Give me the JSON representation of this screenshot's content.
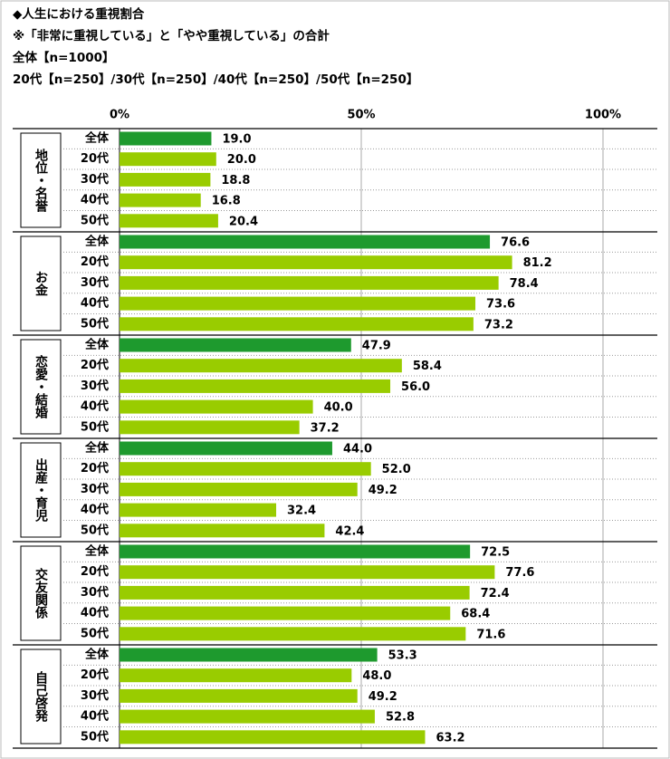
{
  "chart_data": {
    "type": "bar",
    "orientation": "horizontal",
    "title": "◆人生における重視割合",
    "subtitles": [
      "※「非常に重視している」と「やや重視している」の合計",
      "全体【n=1000】",
      "20代【n=250】/30代【n=250】/40代【n=250】/50代【n=250】"
    ],
    "categories": [
      "全体",
      "20代",
      "30代",
      "40代",
      "50代"
    ],
    "colors": [
      "#1e9a2e",
      "#99cc00"
    ],
    "groups": [
      {
        "name": "地位・名誉",
        "values": [
          19.0,
          20.0,
          18.8,
          16.8,
          20.4
        ],
        "value_labels": [
          "19.0",
          "20.0",
          "18.8",
          "16.8",
          "20.4"
        ]
      },
      {
        "name": "お金",
        "values": [
          76.6,
          81.2,
          78.4,
          73.6,
          73.2
        ],
        "value_labels": [
          "76.6",
          "81.2",
          "78.4",
          "73.6",
          "73.2"
        ]
      },
      {
        "name": "恋愛・結婚",
        "values": [
          47.9,
          58.4,
          56.0,
          40.0,
          37.2
        ],
        "value_labels": [
          "47.9",
          "58.4",
          "56.0",
          "40.0",
          "37.2"
        ]
      },
      {
        "name": "出産・育児",
        "values": [
          44.0,
          52.0,
          49.2,
          32.4,
          42.4
        ],
        "value_labels": [
          "44.0",
          "52.0",
          "49.2",
          "32.4",
          "42.4"
        ]
      },
      {
        "name": "交友関係",
        "values": [
          72.5,
          77.6,
          72.4,
          68.4,
          71.6
        ],
        "value_labels": [
          "72.5",
          "77.6",
          "72.4",
          "68.4",
          "71.6"
        ]
      },
      {
        "name": "自己啓発",
        "values": [
          53.3,
          48.0,
          49.2,
          52.8,
          63.2
        ],
        "value_labels": [
          "53.3",
          "48.0",
          "49.2",
          "52.8",
          "63.2"
        ]
      }
    ],
    "xlim": [
      0,
      100
    ],
    "xticks": [
      {
        "value": 0,
        "label": "0%"
      },
      {
        "value": 50,
        "label": "50%"
      },
      {
        "value": 100,
        "label": "100%"
      }
    ]
  }
}
